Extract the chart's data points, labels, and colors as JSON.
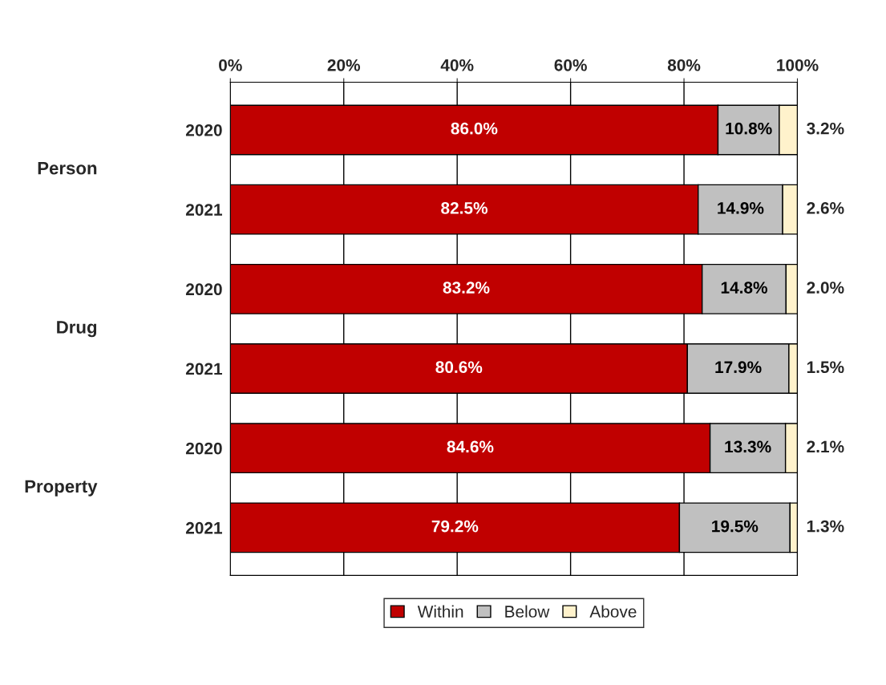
{
  "chart_data": {
    "type": "bar",
    "orientation": "horizontal",
    "stacked": true,
    "categories": [
      "2020",
      "2021",
      "2020",
      "2021",
      "2020",
      "2021"
    ],
    "series": [
      {
        "name": "Within",
        "color": "#c00000",
        "values": [
          86.0,
          82.5,
          83.2,
          80.6,
          84.6,
          79.2
        ],
        "value_labels": [
          "86.0%",
          "82.5%",
          "83.2%",
          "80.6%",
          "84.6%",
          "79.2%"
        ]
      },
      {
        "name": "Below",
        "color": "#c0c0c0",
        "values": [
          10.8,
          14.9,
          14.8,
          17.9,
          13.3,
          19.5
        ],
        "value_labels": [
          "10.8%",
          "14.9%",
          "14.8%",
          "17.9%",
          "13.3%",
          "19.5%"
        ]
      },
      {
        "name": "Above",
        "color": "#fff2cc",
        "values": [
          3.2,
          2.6,
          2.0,
          1.5,
          2.1,
          1.3
        ],
        "value_labels": [
          "3.2%",
          "2.6%",
          "2.0%",
          "1.5%",
          "2.1%",
          "1.3%"
        ]
      }
    ],
    "xlim": [
      0,
      100
    ],
    "xticks": [
      {
        "value": 0,
        "label": "0%"
      },
      {
        "value": 20,
        "label": "20%"
      },
      {
        "value": 40,
        "label": "40%"
      },
      {
        "value": 60,
        "label": "60%"
      },
      {
        "value": 80,
        "label": "80%"
      },
      {
        "value": 100,
        "label": "100%"
      }
    ],
    "annotations": [
      "Person",
      "Drug",
      "Property"
    ],
    "grid": "x",
    "legend": "bottom"
  }
}
